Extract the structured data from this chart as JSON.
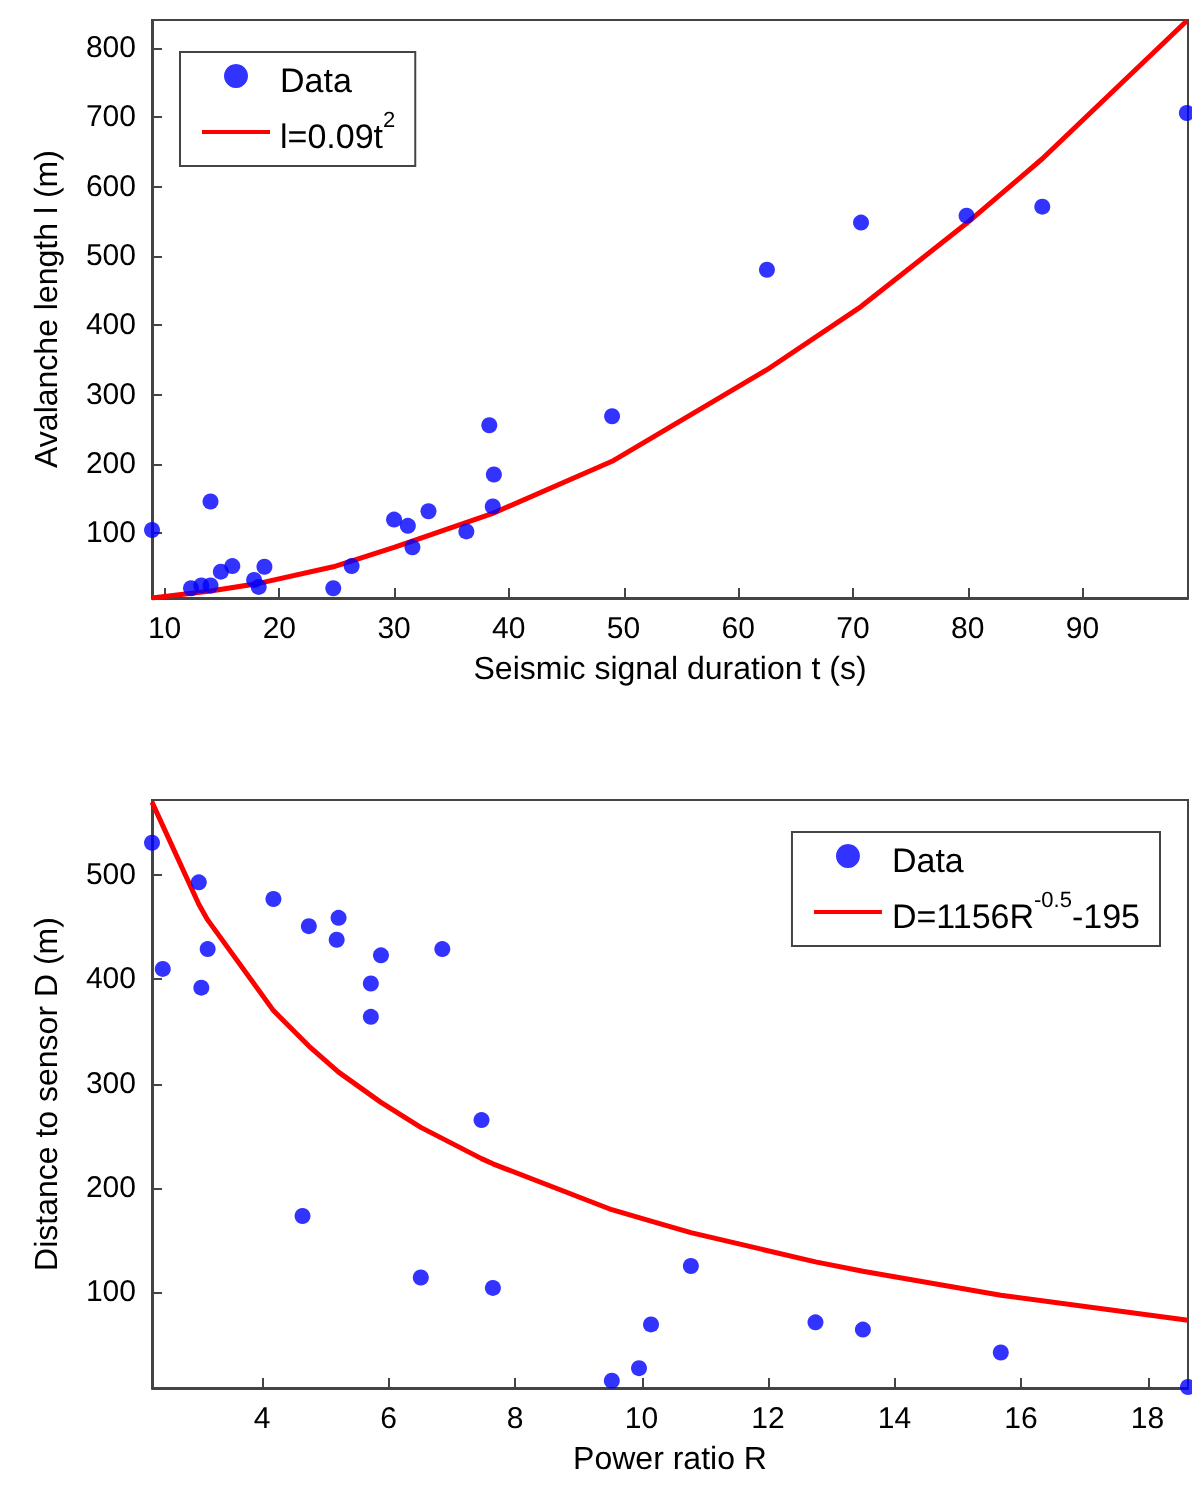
{
  "chart_data": [
    {
      "type": "scatter",
      "xlabel": "Seismic signal duration t (s)",
      "ylabel": "Avalanche length l (m)",
      "xlim": [
        8.9,
        99.2
      ],
      "ylim": [
        7,
        840
      ],
      "xticks": [
        10,
        20,
        30,
        40,
        50,
        60,
        70,
        80,
        90
      ],
      "yticks": [
        100,
        200,
        300,
        400,
        500,
        600,
        700,
        800
      ],
      "legend": "top left",
      "line_style": "solid",
      "series": [
        {
          "name": "Data",
          "marker": "circle",
          "color": "#0000ff",
          "x": [
            8.9,
            14.0,
            12.3,
            13.2,
            14.0,
            14.9,
            15.9,
            17.8,
            18.2,
            18.7,
            24.7,
            26.3,
            30.0,
            31.2,
            31.6,
            33.0,
            36.3,
            38.3,
            38.7,
            38.6,
            49.0,
            62.5,
            70.7,
            79.9,
            86.5,
            99.1
          ],
          "values": [
            105,
            146,
            21,
            25,
            25,
            45,
            53,
            33,
            23,
            52,
            21,
            53,
            120,
            111,
            80,
            132,
            103,
            256,
            185,
            139,
            269,
            480,
            548,
            558,
            571,
            706
          ]
        },
        {
          "name": "l=0.09t$^{2}$",
          "type": "line",
          "color": "#ff0000",
          "x": [
            8.9,
            14.0,
            18.2,
            24.7,
            30.0,
            38.6,
            49.0,
            62.5,
            70.7,
            79.9,
            86.5,
            99.1
          ],
          "values": [
            7,
            17,
            28,
            52,
            80,
            129,
            204,
            336,
            427,
            547,
            640,
            839
          ]
        }
      ]
    },
    {
      "type": "scatter",
      "xlabel": "Power ratio R",
      "ylabel": "Distance to sensor D (m)",
      "xlim": [
        2.26,
        18.64
      ],
      "ylim": [
        8,
        572
      ],
      "xticks": [
        4,
        6,
        8,
        10,
        12,
        14,
        16,
        18
      ],
      "yticks": [
        100,
        200,
        300,
        400,
        500
      ],
      "legend": "top right",
      "line_style": "solid",
      "series": [
        {
          "name": "Data",
          "marker": "circle",
          "color": "#0000ff",
          "x": [
            2.26,
            2.43,
            3.0,
            3.04,
            3.14,
            4.18,
            4.74,
            4.64,
            5.21,
            5.18,
            5.72,
            5.72,
            5.88,
            6.85,
            6.51,
            7.47,
            7.65,
            9.53,
            9.96,
            10.15,
            10.78,
            12.75,
            13.5,
            15.68,
            18.64
          ],
          "values": [
            531,
            410,
            493,
            392,
            429,
            477,
            451,
            173,
            459,
            438,
            396,
            364,
            423,
            429,
            114,
            265,
            104,
            15,
            27,
            69,
            125,
            71,
            64,
            42,
            9
          ]
        },
        {
          "name": "D=1156R$^{-0.5}$-195",
          "type": "line",
          "color": "#ff0000",
          "x": [
            2.26,
            3.0,
            3.14,
            4.18,
            4.74,
            5.21,
            5.88,
            6.51,
            7.47,
            7.65,
            9.53,
            10.15,
            10.78,
            12.75,
            13.5,
            15.68,
            18.64
          ],
          "values": [
            570,
            472,
            457,
            370,
            336,
            311,
            282,
            258,
            228,
            223,
            179,
            168,
            157,
            129,
            120,
            97,
            73
          ]
        }
      ]
    }
  ]
}
